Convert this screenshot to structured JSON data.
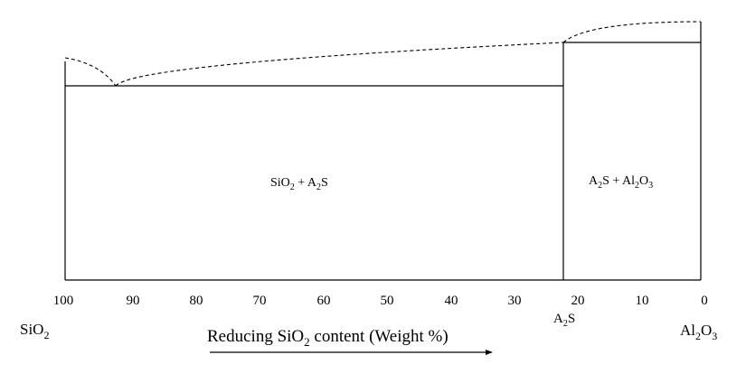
{
  "x_ticks": [
    "100",
    "90",
    "80",
    "70",
    "60",
    "50",
    "40",
    "30",
    "20",
    "10",
    "0"
  ],
  "left_end": {
    "main": "SiO",
    "sub": "2"
  },
  "right_end": {
    "p1": "Al",
    "s1": "2",
    "p2": "O",
    "s2": "3"
  },
  "compound_marker": {
    "main": "A",
    "sub": "2",
    "tail": "S"
  },
  "regions": {
    "left": {
      "p1": "SiO",
      "s1": "2",
      "p2": " + A",
      "s2": "2",
      "p3": "S"
    },
    "right": {
      "p1": "A",
      "s1": "2",
      "p2": "S + Al",
      "s2": "2",
      "p3": "O",
      "s3": "3"
    }
  },
  "axis_title": {
    "p1": "Reducing SiO",
    "s1": "2",
    "p2": " content (Weight %)"
  },
  "compound_composition_wt_pct_SiO2": 22,
  "eutectic_composition_wt_pct_SiO2": 92
}
